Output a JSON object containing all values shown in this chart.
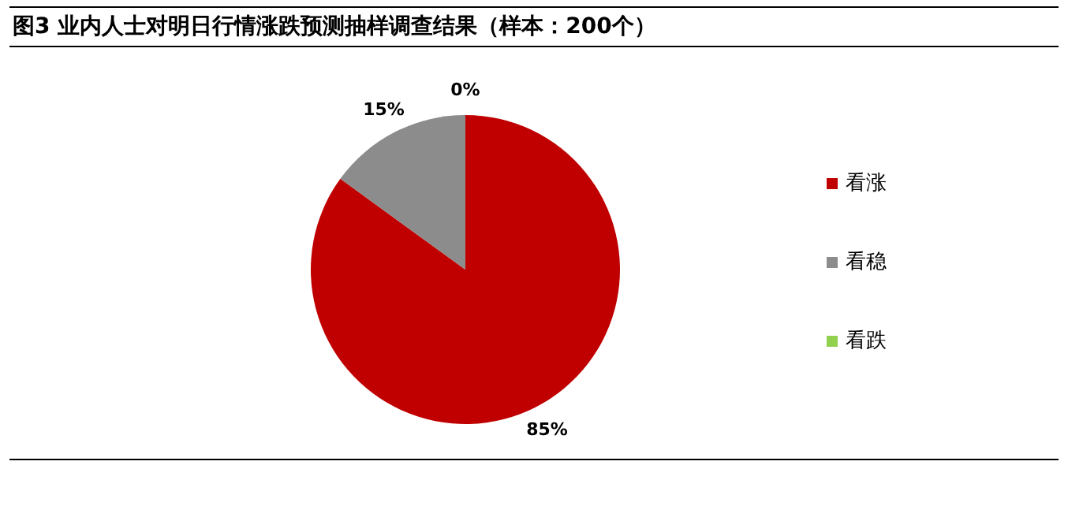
{
  "chart_data": {
    "type": "pie",
    "title": "图3 业内人士对明日行情涨跌预测抽样调查结果（样本：200个）",
    "categories": [
      "看涨",
      "看稳",
      "看跌"
    ],
    "values": [
      85,
      15,
      0
    ],
    "colors": [
      "#c00000",
      "#8c8c8c",
      "#92d050"
    ],
    "value_labels": [
      "85%",
      "15%",
      "0%"
    ],
    "legend": "right"
  }
}
